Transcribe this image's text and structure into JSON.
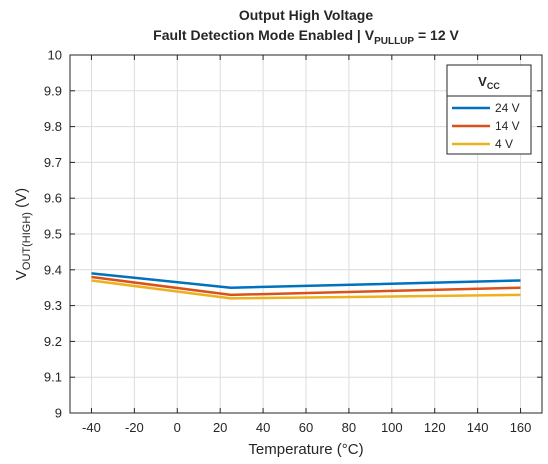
{
  "chart_data": {
    "type": "line",
    "title_line1": "Output High Voltage",
    "title_line2_prefix": "Fault Detection Mode Enabled | V",
    "title_line2_sub": "PULLUP",
    "title_line2_suffix": " = 12 V",
    "xlabel": "Temperature (°C)",
    "ylabel_main": "V",
    "ylabel_sub": "OUT(HIGH)",
    "ylabel_unit": " (V)",
    "xlim": [
      -50,
      170
    ],
    "ylim": [
      9,
      10
    ],
    "xticks": [
      -40,
      -20,
      0,
      20,
      40,
      60,
      80,
      100,
      120,
      140,
      160
    ],
    "yticks": [
      9,
      9.1,
      9.2,
      9.3,
      9.4,
      9.5,
      9.6,
      9.7,
      9.8,
      9.9,
      10
    ],
    "xtick_labels": [
      "-40",
      "-20",
      "0",
      "20",
      "40",
      "60",
      "80",
      "100",
      "120",
      "140",
      "160"
    ],
    "ytick_labels": [
      "9",
      "9.1",
      "9.2",
      "9.3",
      "9.4",
      "9.5",
      "9.6",
      "9.7",
      "9.8",
      "9.9",
      "10"
    ],
    "grid": true,
    "legend": {
      "title_main": "V",
      "title_sub": "CC",
      "placement": "top-right"
    },
    "series": [
      {
        "name": "24 V",
        "color": "#0072BD",
        "x": [
          -40,
          25,
          160
        ],
        "y": [
          9.39,
          9.35,
          9.37
        ]
      },
      {
        "name": "14 V",
        "color": "#D95319",
        "x": [
          -40,
          25,
          160
        ],
        "y": [
          9.38,
          9.33,
          9.35
        ]
      },
      {
        "name": "4 V",
        "color": "#EDB120",
        "x": [
          -40,
          25,
          160
        ],
        "y": [
          9.37,
          9.32,
          9.33
        ]
      }
    ]
  }
}
